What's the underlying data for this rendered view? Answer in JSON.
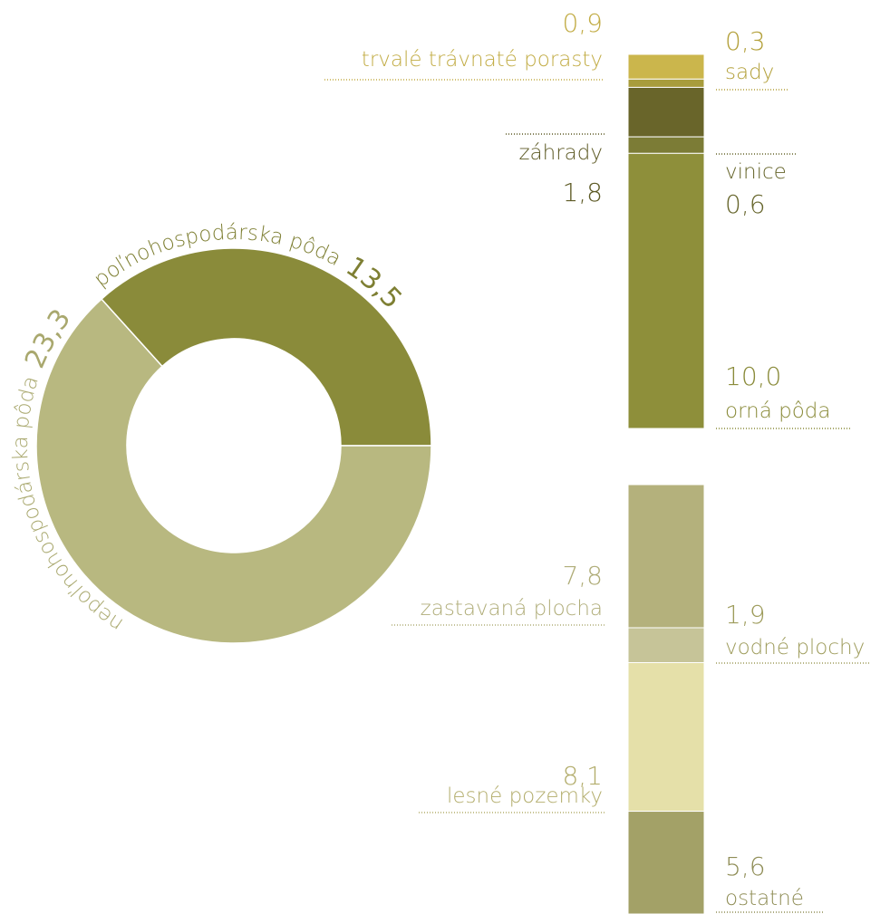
{
  "chart_data": [
    {
      "type": "donut",
      "categories": [
        "poľnohospodárska pôda",
        "nepoľnohospodárska pôda"
      ],
      "values": [
        13.5,
        23.3
      ],
      "value_labels": [
        "13,5",
        "23,3"
      ],
      "colors": [
        "#8a8b3a",
        "#b8b880"
      ]
    },
    {
      "type": "stacked_bar",
      "categories": [
        "trvalé trávnaté porasty",
        "sady",
        "záhrady",
        "vinice",
        "orná pôda"
      ],
      "values": [
        0.9,
        0.3,
        1.8,
        0.6,
        10.0
      ],
      "value_labels": [
        "0,9",
        "0,3",
        "1,8",
        "0,6",
        "10,0"
      ],
      "colors": [
        "#cbb64c",
        "#a89c3c",
        "#69652a",
        "#7c7c36",
        "#8e8f3a"
      ]
    },
    {
      "type": "stacked_bar",
      "categories": [
        "zastavaná plocha",
        "vodné plochy",
        "lesné pozemky",
        "ostatné"
      ],
      "values": [
        7.8,
        1.9,
        8.1,
        5.6
      ],
      "value_labels": [
        "7,8",
        "1,9",
        "8,1",
        "5,6"
      ],
      "colors": [
        "#b4b17c",
        "#c6c498",
        "#e5e0a9",
        "#a3a167"
      ]
    }
  ]
}
